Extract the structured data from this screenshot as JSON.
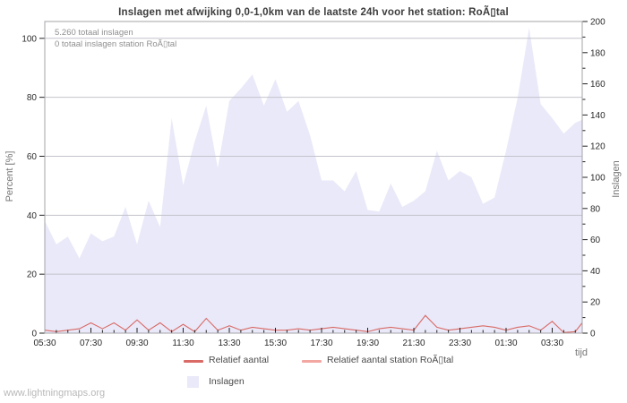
{
  "title": "Inslagen met afwijking 0,0-1,0km van de laatste 24h voor het station: RoÃ▯tal",
  "annotations": {
    "total": "5.260 totaal inslagen",
    "station_total": "0 totaal inslagen station RoÃ▯tal"
  },
  "watermark": "www.lightningmaps.org",
  "colors": {
    "area_fill": "#e9e9f9",
    "line_relatief": "#d96a66",
    "line_station": "#f2a7a3",
    "grid": "#c3c3cc",
    "frame": "#a4a4aa",
    "tick": "#222222",
    "tick_label": "#2a2a2a",
    "unit_label": "#757575",
    "annotation_text": "#8f8f8f"
  },
  "chart_data": {
    "type": "area",
    "title": "Inslagen met afwijking 0,0-1,0km van de laatste 24h voor het station: RoÃ▯tal",
    "xlabel": "tijd",
    "x_step_minutes": 30,
    "x_times": [
      "05:30",
      "06:00",
      "06:30",
      "07:00",
      "07:30",
      "08:00",
      "08:30",
      "09:00",
      "09:30",
      "10:00",
      "10:30",
      "11:00",
      "11:30",
      "12:00",
      "12:30",
      "13:00",
      "13:30",
      "14:00",
      "14:30",
      "15:00",
      "15:30",
      "16:00",
      "16:30",
      "17:00",
      "17:30",
      "18:00",
      "18:30",
      "19:00",
      "19:30",
      "20:00",
      "20:30",
      "21:00",
      "21:30",
      "22:00",
      "22:30",
      "23:00",
      "23:30",
      "00:00",
      "00:30",
      "01:00",
      "01:30",
      "02:00",
      "02:30",
      "03:00",
      "03:30",
      "04:00",
      "04:30",
      "04:45"
    ],
    "x_major_labels": [
      "05:30",
      "07:30",
      "09:30",
      "11:30",
      "13:30",
      "15:30",
      "17:30",
      "19:30",
      "21:30",
      "23:30",
      "01:30",
      "03:30"
    ],
    "left_axis": {
      "label": "Percent  [%]",
      "min": 0,
      "max": 100,
      "tick_step": 20
    },
    "right_axis": {
      "label": "Inslagen",
      "min": 0,
      "max": 200,
      "tick_step": 20,
      "minor_step": 10
    },
    "grid": "horizontal-only",
    "legend_position": "bottom",
    "series": [
      {
        "name": "Inslagen",
        "type": "area",
        "axis": "right",
        "color": "#e9e9f9",
        "values": [
          72,
          57,
          62,
          48,
          64,
          59,
          62,
          81,
          57,
          85,
          68,
          138,
          95,
          123,
          146,
          106,
          149,
          157,
          166,
          146,
          163,
          142,
          149,
          127,
          98,
          98,
          91,
          104,
          79,
          78,
          96,
          81,
          85,
          91,
          117,
          98,
          104,
          100,
          83,
          87,
          117,
          151,
          196,
          147,
          138,
          128,
          135,
          137
        ]
      },
      {
        "name": "Relatief aantal",
        "type": "line",
        "axis": "left",
        "color": "#d96a66",
        "values": [
          1,
          0.5,
          1,
          1.5,
          3.5,
          1.5,
          3.5,
          1,
          4.5,
          1,
          3.5,
          0.5,
          3,
          0.5,
          5,
          1,
          2.5,
          1,
          2,
          1.5,
          1,
          1,
          1.5,
          1,
          1.5,
          2,
          1.5,
          1,
          0.5,
          1.5,
          2,
          1.5,
          1,
          6,
          2,
          1,
          1.5,
          2,
          2.5,
          2,
          1,
          2,
          2.5,
          1,
          4,
          0.2,
          0.5,
          3.5
        ]
      },
      {
        "name": "Relatief aantal station RoÃ▯tal",
        "type": "line",
        "axis": "left",
        "color": "#f2a7a3",
        "values": [
          0,
          0,
          0,
          0,
          0,
          0,
          0,
          0,
          0,
          0,
          0,
          0,
          0,
          0,
          0,
          0,
          0,
          0,
          0,
          0,
          0,
          0,
          0,
          0,
          0,
          0,
          0,
          0,
          0,
          0,
          0,
          0,
          0,
          0,
          0,
          0,
          0,
          0,
          0,
          0,
          0,
          0,
          0,
          0,
          0,
          0,
          0,
          0
        ]
      }
    ]
  }
}
